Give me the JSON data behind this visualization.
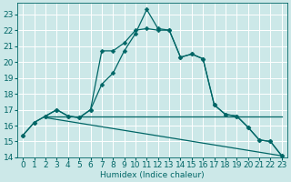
{
  "xlabel": "Humidex (Indice chaleur)",
  "background_color": "#cce8e8",
  "grid_color": "#b0d8d8",
  "line_color": "#006666",
  "xlim": [
    -0.5,
    23.5
  ],
  "ylim": [
    14,
    23.7
  ],
  "yticks": [
    14,
    15,
    16,
    17,
    18,
    19,
    20,
    21,
    22,
    23
  ],
  "xticks": [
    0,
    1,
    2,
    3,
    4,
    5,
    6,
    7,
    8,
    9,
    10,
    11,
    12,
    13,
    14,
    15,
    16,
    17,
    18,
    19,
    20,
    21,
    22,
    23
  ],
  "curve1_x": [
    0,
    1,
    2,
    3,
    4,
    5,
    6,
    7,
    8,
    9,
    10,
    11,
    12,
    13,
    14,
    15,
    16,
    17,
    18,
    19,
    20,
    21,
    22,
    23
  ],
  "curve1_y": [
    15.4,
    16.2,
    16.6,
    17.0,
    16.6,
    16.5,
    17.0,
    18.6,
    19.3,
    20.7,
    21.8,
    23.3,
    22.1,
    22.0,
    20.3,
    20.5,
    20.2,
    17.3,
    16.7,
    16.6,
    15.9,
    15.1,
    15.0,
    14.1
  ],
  "curve2_x": [
    0,
    1,
    2,
    3,
    4,
    5,
    6,
    7,
    8,
    9,
    10,
    11,
    12,
    13,
    14,
    15,
    16,
    17,
    18,
    19,
    20,
    21,
    22,
    23
  ],
  "curve2_y": [
    15.4,
    16.2,
    16.6,
    17.0,
    16.6,
    16.5,
    17.0,
    20.7,
    20.7,
    21.2,
    22.0,
    22.1,
    22.0,
    22.0,
    20.3,
    20.5,
    20.2,
    17.3,
    16.7,
    16.6,
    15.9,
    15.1,
    15.0,
    14.1
  ],
  "curve3_x": [
    2,
    23
  ],
  "curve3_y": [
    16.6,
    16.6
  ],
  "curve4_x": [
    2,
    23
  ],
  "curve4_y": [
    16.5,
    14.1
  ],
  "marker_size": 2.5,
  "lw": 0.9,
  "font_size": 6.5
}
